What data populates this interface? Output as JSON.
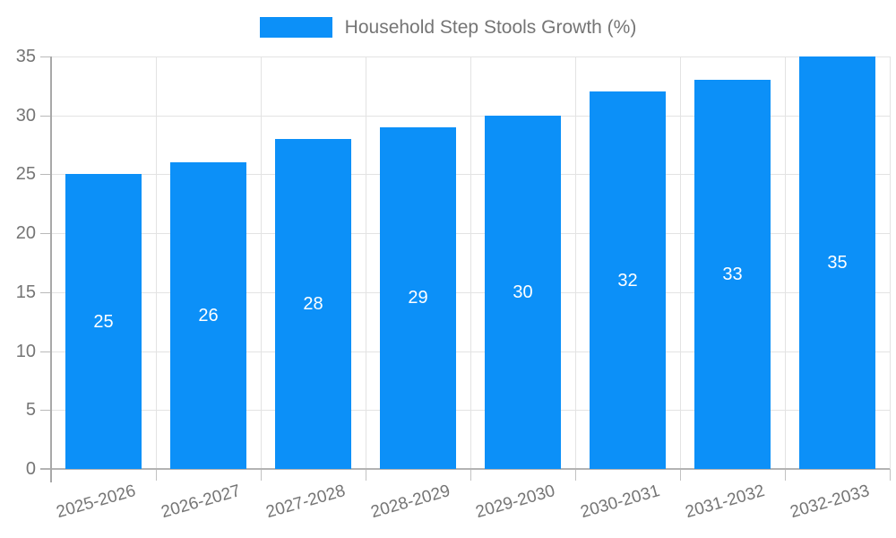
{
  "chart_data": {
    "type": "bar",
    "title": "Household Step Stools Growth (%)",
    "categories": [
      "2025-2026",
      "2026-2027",
      "2027-2028",
      "2028-2029",
      "2029-2030",
      "2030-2031",
      "2031-2032",
      "2032-2033"
    ],
    "values": [
      25,
      26,
      28,
      29,
      30,
      32,
      33,
      35
    ],
    "xlabel": "",
    "ylabel": "",
    "ylim": [
      0,
      35
    ],
    "yticks": [
      0,
      5,
      10,
      15,
      20,
      25,
      30,
      35
    ],
    "grid": true,
    "legend_position": "top",
    "bar_color": "#0c90f8",
    "bar_value_label_color": "#ffffff",
    "axis_text_color": "#757575",
    "gridline_color": "#e3e3e3",
    "axis_line_color": "#b3b3b3"
  },
  "legend": {
    "label": "Household Step Stools Growth (%)"
  }
}
